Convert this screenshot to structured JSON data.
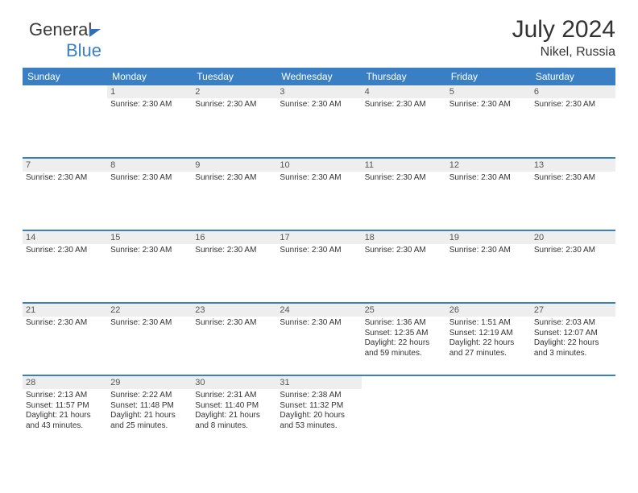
{
  "brand": {
    "part1": "General",
    "part2": "Blue"
  },
  "title": "July 2024",
  "location": "Nikel, Russia",
  "headers": [
    "Sunday",
    "Monday",
    "Tuesday",
    "Wednesday",
    "Thursday",
    "Friday",
    "Saturday"
  ],
  "colors": {
    "accent": "#3a7fc4",
    "daynum_bg": "#eeeeee",
    "text": "#333333",
    "page_bg": "#ffffff"
  },
  "weeks": [
    [
      {
        "day": "",
        "lines": []
      },
      {
        "day": "1",
        "lines": [
          "Sunrise: 2:30 AM"
        ]
      },
      {
        "day": "2",
        "lines": [
          "Sunrise: 2:30 AM"
        ]
      },
      {
        "day": "3",
        "lines": [
          "Sunrise: 2:30 AM"
        ]
      },
      {
        "day": "4",
        "lines": [
          "Sunrise: 2:30 AM"
        ]
      },
      {
        "day": "5",
        "lines": [
          "Sunrise: 2:30 AM"
        ]
      },
      {
        "day": "6",
        "lines": [
          "Sunrise: 2:30 AM"
        ]
      }
    ],
    [
      {
        "day": "7",
        "lines": [
          "Sunrise: 2:30 AM"
        ]
      },
      {
        "day": "8",
        "lines": [
          "Sunrise: 2:30 AM"
        ]
      },
      {
        "day": "9",
        "lines": [
          "Sunrise: 2:30 AM"
        ]
      },
      {
        "day": "10",
        "lines": [
          "Sunrise: 2:30 AM"
        ]
      },
      {
        "day": "11",
        "lines": [
          "Sunrise: 2:30 AM"
        ]
      },
      {
        "day": "12",
        "lines": [
          "Sunrise: 2:30 AM"
        ]
      },
      {
        "day": "13",
        "lines": [
          "Sunrise: 2:30 AM"
        ]
      }
    ],
    [
      {
        "day": "14",
        "lines": [
          "Sunrise: 2:30 AM"
        ]
      },
      {
        "day": "15",
        "lines": [
          "Sunrise: 2:30 AM"
        ]
      },
      {
        "day": "16",
        "lines": [
          "Sunrise: 2:30 AM"
        ]
      },
      {
        "day": "17",
        "lines": [
          "Sunrise: 2:30 AM"
        ]
      },
      {
        "day": "18",
        "lines": [
          "Sunrise: 2:30 AM"
        ]
      },
      {
        "day": "19",
        "lines": [
          "Sunrise: 2:30 AM"
        ]
      },
      {
        "day": "20",
        "lines": [
          "Sunrise: 2:30 AM"
        ]
      }
    ],
    [
      {
        "day": "21",
        "lines": [
          "Sunrise: 2:30 AM"
        ]
      },
      {
        "day": "22",
        "lines": [
          "Sunrise: 2:30 AM"
        ]
      },
      {
        "day": "23",
        "lines": [
          "Sunrise: 2:30 AM"
        ]
      },
      {
        "day": "24",
        "lines": [
          "Sunrise: 2:30 AM"
        ]
      },
      {
        "day": "25",
        "lines": [
          "Sunrise: 1:36 AM",
          "Sunset: 12:35 AM",
          "Daylight: 22 hours and 59 minutes."
        ]
      },
      {
        "day": "26",
        "lines": [
          "Sunrise: 1:51 AM",
          "Sunset: 12:19 AM",
          "Daylight: 22 hours and 27 minutes."
        ]
      },
      {
        "day": "27",
        "lines": [
          "Sunrise: 2:03 AM",
          "Sunset: 12:07 AM",
          "Daylight: 22 hours and 3 minutes."
        ]
      }
    ],
    [
      {
        "day": "28",
        "lines": [
          "Sunrise: 2:13 AM",
          "Sunset: 11:57 PM",
          "Daylight: 21 hours and 43 minutes."
        ]
      },
      {
        "day": "29",
        "lines": [
          "Sunrise: 2:22 AM",
          "Sunset: 11:48 PM",
          "Daylight: 21 hours and 25 minutes."
        ]
      },
      {
        "day": "30",
        "lines": [
          "Sunrise: 2:31 AM",
          "Sunset: 11:40 PM",
          "Daylight: 21 hours and 8 minutes."
        ]
      },
      {
        "day": "31",
        "lines": [
          "Sunrise: 2:38 AM",
          "Sunset: 11:32 PM",
          "Daylight: 20 hours and 53 minutes."
        ]
      },
      {
        "day": "",
        "lines": []
      },
      {
        "day": "",
        "lines": []
      },
      {
        "day": "",
        "lines": []
      }
    ]
  ]
}
